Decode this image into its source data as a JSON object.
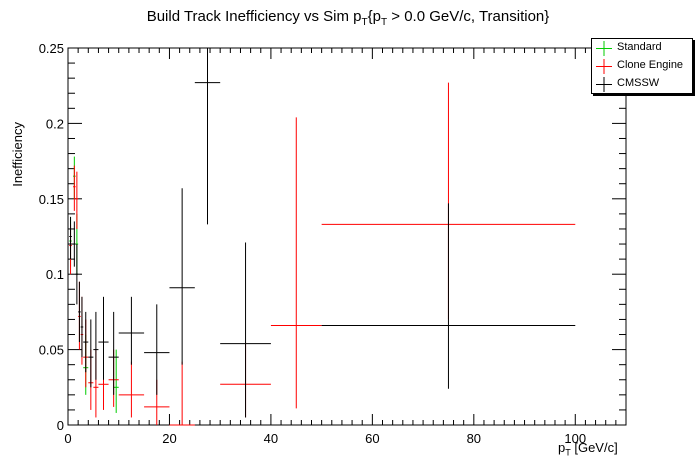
{
  "title": {
    "prefix": "Build Track Inefficiency vs Sim p",
    "sub1": "T",
    "mid": "{p",
    "sub2": "T",
    "suffix": " > 0.0 GeV/c, Transition}"
  },
  "chart_data": {
    "type": "scatter",
    "title": "Build Track Inefficiency vs Sim pT{pT > 0.0 GeV/c, Transition}",
    "xlabel": "pT [GeV/c]",
    "ylabel": "Inefficiency",
    "xlim": [
      0,
      110
    ],
    "ylim": [
      0,
      0.25
    ],
    "xticks": [
      0,
      20,
      40,
      60,
      80,
      100
    ],
    "yticks": [
      0,
      0.05,
      0.1,
      0.15,
      0.2,
      0.25
    ],
    "legend_position": "top-right",
    "series": [
      {
        "name": "Standard",
        "color": "#00cc00",
        "points": [
          {
            "x": 0.5,
            "xerr": 0.25,
            "y": 0.122,
            "ylo": 0.105,
            "yhi": 0.138
          },
          {
            "x": 1.25,
            "xerr": 0.25,
            "y": 0.165,
            "ylo": 0.15,
            "yhi": 0.178
          },
          {
            "x": 1.75,
            "xerr": 0.25,
            "y": 0.12,
            "ylo": 0.1,
            "yhi": 0.14
          },
          {
            "x": 3.5,
            "xerr": 0.5,
            "y": 0.038,
            "ylo": 0.02,
            "yhi": 0.06
          },
          {
            "x": 9.5,
            "xerr": 0.5,
            "y": 0.025,
            "ylo": 0.008,
            "yhi": 0.05
          }
        ]
      },
      {
        "name": "Clone Engine",
        "color": "#ff0000",
        "points": [
          {
            "x": 0.5,
            "xerr": 0.25,
            "y": 0.119,
            "ylo": 0.1,
            "yhi": 0.133
          },
          {
            "x": 1.25,
            "xerr": 0.25,
            "y": 0.158,
            "ylo": 0.142,
            "yhi": 0.172
          },
          {
            "x": 1.75,
            "xerr": 0.25,
            "y": 0.15,
            "ylo": 0.13,
            "yhi": 0.168
          },
          {
            "x": 2.25,
            "xerr": 0.25,
            "y": 0.072,
            "ylo": 0.05,
            "yhi": 0.095
          },
          {
            "x": 2.75,
            "xerr": 0.25,
            "y": 0.06,
            "ylo": 0.04,
            "yhi": 0.085
          },
          {
            "x": 3.5,
            "xerr": 0.5,
            "y": 0.045,
            "ylo": 0.025,
            "yhi": 0.07
          },
          {
            "x": 4.5,
            "xerr": 0.5,
            "y": 0.028,
            "ylo": 0.01,
            "yhi": 0.05
          },
          {
            "x": 5.5,
            "xerr": 0.5,
            "y": 0.025,
            "ylo": 0.005,
            "yhi": 0.05
          },
          {
            "x": 7,
            "xerr": 1,
            "y": 0.027,
            "ylo": 0.01,
            "yhi": 0.05
          },
          {
            "x": 9,
            "xerr": 1,
            "y": 0.03,
            "ylo": 0.012,
            "yhi": 0.05
          },
          {
            "x": 12.5,
            "xerr": 2.5,
            "y": 0.02,
            "ylo": 0.005,
            "yhi": 0.042
          },
          {
            "x": 17.5,
            "xerr": 2.5,
            "y": 0.012,
            "ylo": 0.0,
            "yhi": 0.03
          },
          {
            "x": 22.5,
            "xerr": 2.5,
            "y": 0.0,
            "ylo": 0.0,
            "yhi": 0.042
          },
          {
            "x": 35,
            "xerr": 5,
            "y": 0.027,
            "ylo": 0.005,
            "yhi": 0.055
          },
          {
            "x": 45,
            "xerr": 5,
            "y": 0.066,
            "ylo": 0.011,
            "yhi": 0.204
          },
          {
            "x": 75,
            "xerr": 25,
            "y": 0.133,
            "ylo": 0.07,
            "yhi": 0.227
          }
        ]
      },
      {
        "name": "CMSSW",
        "color": "#000000",
        "points": [
          {
            "x": 0.5,
            "xerr": 0.25,
            "y": 0.125,
            "ylo": 0.11,
            "yhi": 0.138
          },
          {
            "x": 1.25,
            "xerr": 0.25,
            "y": 0.12,
            "ylo": 0.105,
            "yhi": 0.135
          },
          {
            "x": 1.75,
            "xerr": 0.25,
            "y": 0.1,
            "ylo": 0.08,
            "yhi": 0.12
          },
          {
            "x": 2.25,
            "xerr": 0.25,
            "y": 0.075,
            "ylo": 0.055,
            "yhi": 0.095
          },
          {
            "x": 2.75,
            "xerr": 0.25,
            "y": 0.065,
            "ylo": 0.045,
            "yhi": 0.085
          },
          {
            "x": 3.5,
            "xerr": 0.5,
            "y": 0.055,
            "ylo": 0.035,
            "yhi": 0.075
          },
          {
            "x": 4.5,
            "xerr": 0.5,
            "y": 0.045,
            "ylo": 0.025,
            "yhi": 0.07
          },
          {
            "x": 5.5,
            "xerr": 0.5,
            "y": 0.05,
            "ylo": 0.03,
            "yhi": 0.075
          },
          {
            "x": 7,
            "xerr": 1,
            "y": 0.055,
            "ylo": 0.03,
            "yhi": 0.085
          },
          {
            "x": 9,
            "xerr": 1,
            "y": 0.045,
            "ylo": 0.02,
            "yhi": 0.075
          },
          {
            "x": 12.5,
            "xerr": 2.5,
            "y": 0.061,
            "ylo": 0.04,
            "yhi": 0.085
          },
          {
            "x": 17.5,
            "xerr": 2.5,
            "y": 0.048,
            "ylo": 0.02,
            "yhi": 0.08
          },
          {
            "x": 22.5,
            "xerr": 2.5,
            "y": 0.091,
            "ylo": 0.04,
            "yhi": 0.157
          },
          {
            "x": 27.5,
            "xerr": 2.5,
            "y": 0.227,
            "ylo": 0.133,
            "yhi": 0.25
          },
          {
            "x": 35,
            "xerr": 5,
            "y": 0.054,
            "ylo": 0.005,
            "yhi": 0.121
          },
          {
            "x": 75,
            "xerr": 25,
            "y": 0.066,
            "ylo": 0.024,
            "yhi": 0.147
          }
        ]
      }
    ]
  },
  "legend": {
    "items": [
      {
        "label": "Standard",
        "color": "#00cc00"
      },
      {
        "label": "Clone Engine",
        "color": "#ff0000"
      },
      {
        "label": "CMSSW",
        "color": "#000000"
      }
    ]
  },
  "axes": {
    "ylabel": "Inefficiency",
    "xlabel_main": "p",
    "xlabel_sub": "T",
    "xlabel_unit": " [GeV/c]"
  }
}
